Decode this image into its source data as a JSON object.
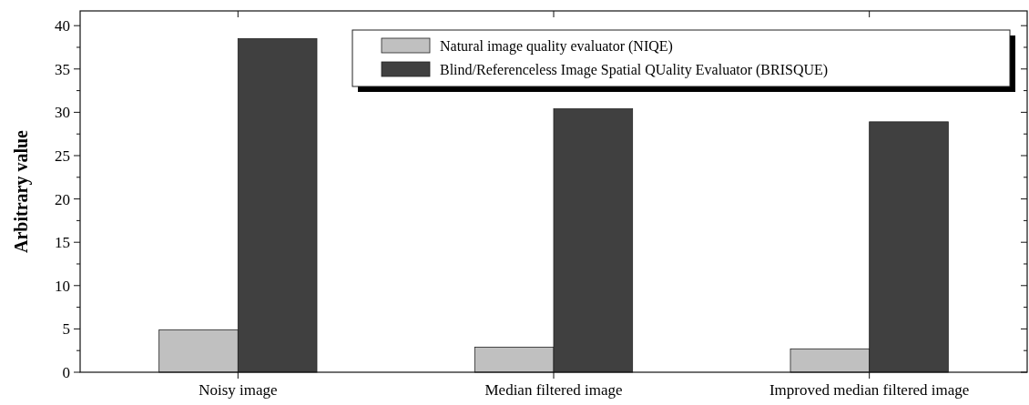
{
  "chart_data": {
    "type": "bar",
    "ylabel": "Arbitrary value",
    "categories": [
      "Noisy image",
      "Median filtered image",
      "Improved median filtered image"
    ],
    "series": [
      {
        "name": "Natural image quality evaluator (NIQE)",
        "color": "#c0c0c0",
        "values": [
          4.9,
          2.9,
          2.7
        ]
      },
      {
        "name": "Blind/Referenceless Image Spatial QUality Evaluator (BRISQUE)",
        "color": "#404040",
        "values": [
          38.5,
          30.4,
          28.9
        ]
      }
    ],
    "ylim": [
      0,
      41.7
    ],
    "yticks": [
      0,
      5,
      10,
      15,
      20,
      25,
      30,
      35,
      40
    ],
    "legend": "top right",
    "grid": false
  }
}
